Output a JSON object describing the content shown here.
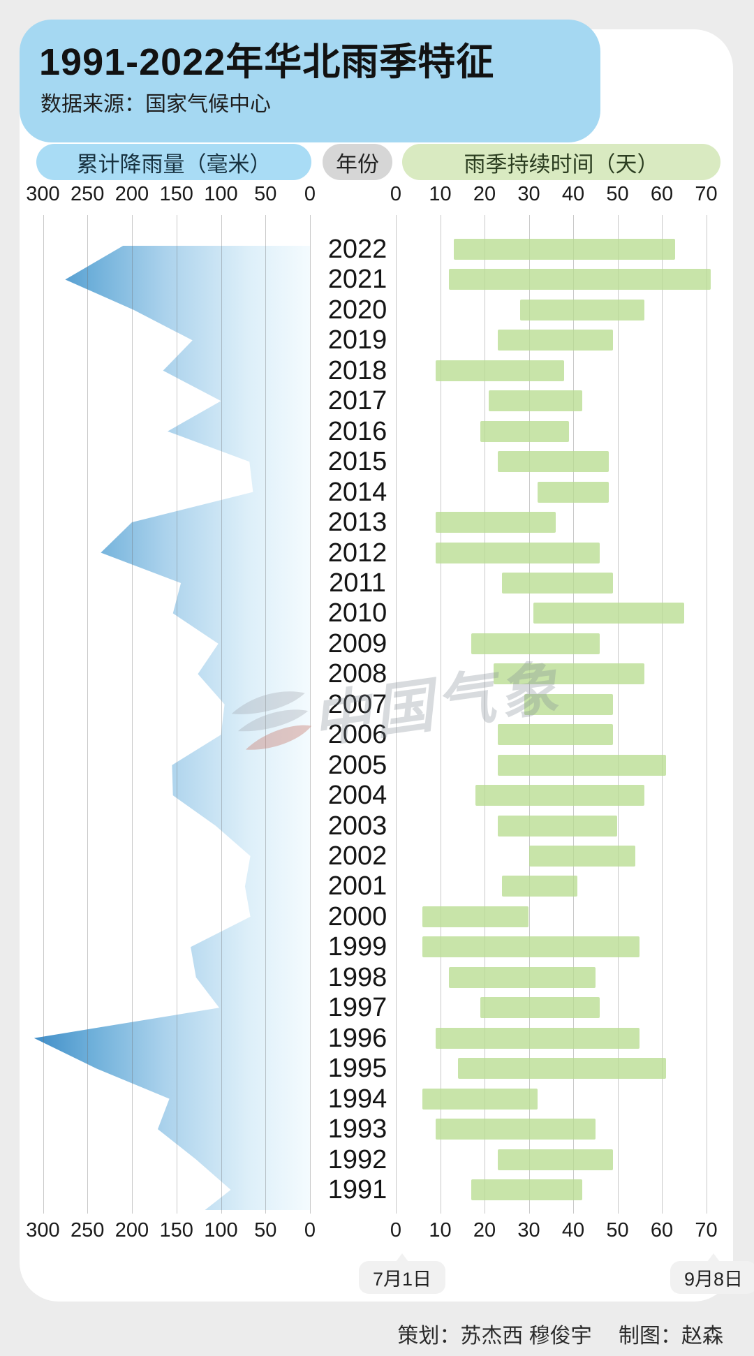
{
  "header": {
    "title": "1991-2022年华北雨季特征",
    "subtitle": "数据来源：国家气候中心"
  },
  "legend": {
    "rain_label": "累计降雨量（毫米）",
    "year_label": "年份",
    "duration_label": "雨季持续时间（天）"
  },
  "axes": {
    "start_date_label": "7月1日",
    "end_date_label": "9月8日"
  },
  "watermark": {
    "text": "中国气象"
  },
  "credits": "策划：苏杰西 穆俊宇　 制图：赵森",
  "colors": {
    "header_blue": "#a5d8f2",
    "rain_pill_blue": "#a9dcf5",
    "year_pill_gray": "#d6d6d6",
    "duration_pill_green": "#d9eac1",
    "bar_green": "#cbe5ad",
    "area_dark_blue": "#3e8cc7",
    "area_pale_blue": "#f2fafe",
    "page_gray": "#ececec"
  },
  "chart_data": [
    {
      "type": "area",
      "title": "累计降雨量（毫米）",
      "orientation": "horizontal, values extend leftward from the zero line on the right",
      "xlabel": "累计降雨量（毫米）",
      "ylabel": "年份",
      "xlim": [
        300,
        0
      ],
      "x_ticks": [
        300,
        250,
        200,
        150,
        100,
        50,
        0
      ],
      "grid": true,
      "categories": [
        2022,
        2021,
        2020,
        2019,
        2018,
        2017,
        2016,
        2015,
        2014,
        2013,
        2012,
        2011,
        2010,
        2009,
        2008,
        2007,
        2006,
        2005,
        2004,
        2003,
        2002,
        2001,
        2000,
        1999,
        1998,
        1997,
        1996,
        1995,
        1994,
        1993,
        1992,
        1991
      ],
      "values": [
        210,
        275,
        198,
        132,
        165,
        100,
        160,
        68,
        64,
        200,
        235,
        145,
        154,
        103,
        126,
        96,
        100,
        155,
        154,
        106,
        67,
        73,
        67,
        134,
        128,
        102,
        310,
        240,
        158,
        171,
        128,
        89
      ]
    },
    {
      "type": "bar",
      "subtype": "range bars (gantt style), days counted from July 1",
      "title": "雨季持续时间（天）",
      "xlabel": "雨季持续时间（天）",
      "xlim": [
        0,
        70
      ],
      "x_ticks": [
        0,
        10,
        20,
        30,
        40,
        50,
        60,
        70
      ],
      "x_axis_start_date": "7月1日",
      "x_axis_end_date": "9月8日",
      "grid": true,
      "categories": [
        2022,
        2021,
        2020,
        2019,
        2018,
        2017,
        2016,
        2015,
        2014,
        2013,
        2012,
        2011,
        2010,
        2009,
        2008,
        2007,
        2006,
        2005,
        2004,
        2003,
        2002,
        2001,
        2000,
        1999,
        1998,
        1997,
        1996,
        1995,
        1994,
        1993,
        1992,
        1991
      ],
      "series": [
        {
          "name": "start_day",
          "values": [
            13,
            12,
            28,
            23,
            9,
            21,
            19,
            23,
            32,
            9,
            9,
            24,
            31,
            17,
            22,
            29,
            23,
            23,
            18,
            23,
            30,
            24,
            6,
            6,
            12,
            19,
            9,
            14,
            6,
            9,
            23,
            17
          ]
        },
        {
          "name": "end_day",
          "values": [
            63,
            71,
            56,
            49,
            38,
            42,
            39,
            48,
            48,
            36,
            46,
            49,
            65,
            46,
            56,
            49,
            49,
            61,
            56,
            50,
            54,
            41,
            30,
            55,
            45,
            46,
            55,
            61,
            32,
            45,
            49,
            42
          ]
        }
      ]
    }
  ]
}
